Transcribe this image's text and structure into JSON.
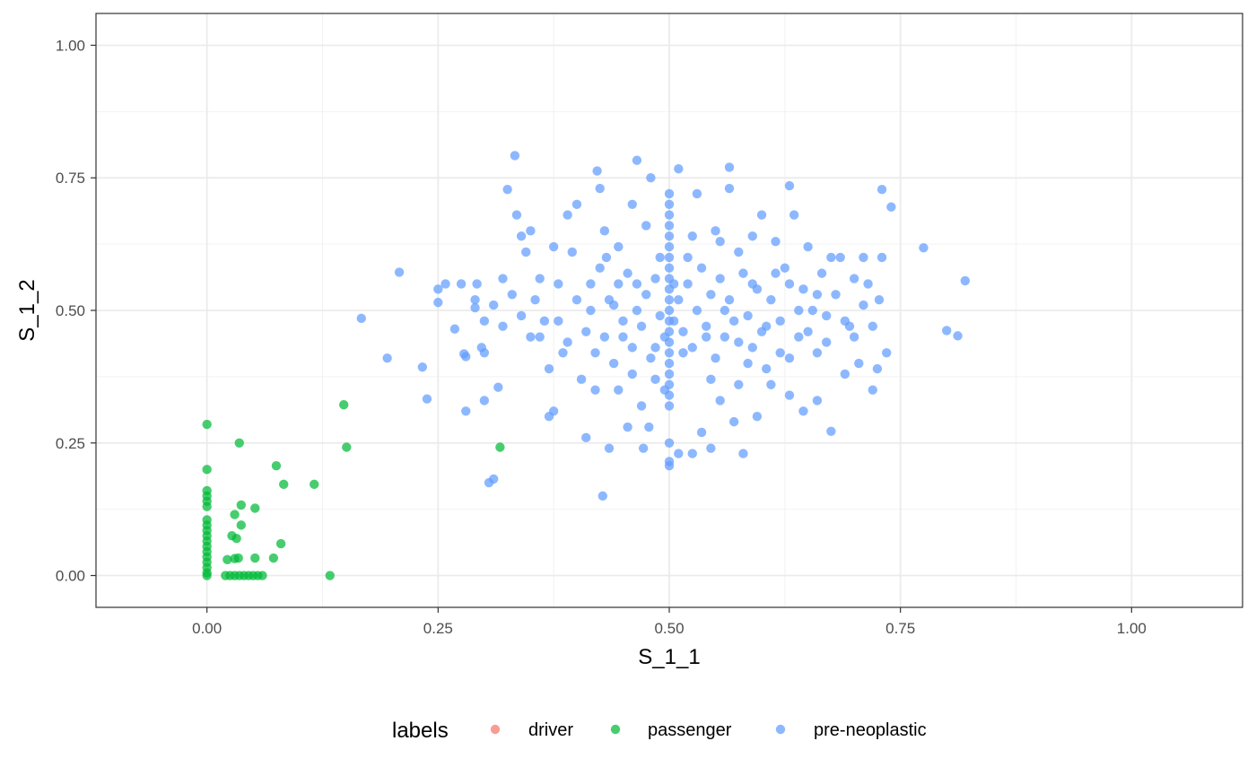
{
  "chart_data": {
    "type": "scatter",
    "xlabel": "S_1_1",
    "ylabel": "S_1_2",
    "xlim": [
      -0.12,
      1.12
    ],
    "ylim": [
      -0.06,
      1.06
    ],
    "x_ticks": [
      0,
      0.25,
      0.5,
      0.75,
      1
    ],
    "y_ticks": [
      0,
      0.25,
      0.5,
      0.75,
      1
    ],
    "x_tick_labels": [
      "0.00",
      "0.25",
      "0.50",
      "0.75",
      "1.00"
    ],
    "y_tick_labels": [
      "0.00",
      "0.25",
      "0.50",
      "0.75",
      "1.00"
    ],
    "grid": true,
    "legend_position": "bottom",
    "legend": {
      "title": "labels",
      "entries": [
        {
          "label": "driver",
          "color": "#F8766D"
        },
        {
          "label": "passenger",
          "color": "#00BA38"
        },
        {
          "label": "pre-neoplastic",
          "color": "#619CFF"
        }
      ]
    },
    "series": [
      {
        "name": "driver",
        "color": "#F8766D",
        "points": []
      },
      {
        "name": "passenger",
        "color": "#00BA38",
        "points": [
          [
            0,
            0.285
          ],
          [
            0,
            0.2
          ],
          [
            0,
            0.16
          ],
          [
            0,
            0.15
          ],
          [
            0,
            0.14
          ],
          [
            0,
            0.13
          ],
          [
            0,
            0.105
          ],
          [
            0,
            0.095
          ],
          [
            0,
            0.085
          ],
          [
            0,
            0.075
          ],
          [
            0,
            0.065
          ],
          [
            0,
            0.055
          ],
          [
            0,
            0.045
          ],
          [
            0,
            0.035
          ],
          [
            0,
            0.025
          ],
          [
            0,
            0.015
          ],
          [
            0,
            0.005
          ],
          [
            0,
            0
          ],
          [
            0.02,
            0
          ],
          [
            0.025,
            0
          ],
          [
            0.03,
            0
          ],
          [
            0.035,
            0
          ],
          [
            0.04,
            0
          ],
          [
            0.045,
            0
          ],
          [
            0.05,
            0
          ],
          [
            0.055,
            0
          ],
          [
            0.06,
            0
          ],
          [
            0.022,
            0.03
          ],
          [
            0.027,
            0.075
          ],
          [
            0.03,
            0.115
          ],
          [
            0.032,
            0.07
          ],
          [
            0.03,
            0.032
          ],
          [
            0.034,
            0.033
          ],
          [
            0.037,
            0.095
          ],
          [
            0.037,
            0.133
          ],
          [
            0.035,
            0.25
          ],
          [
            0.052,
            0.127
          ],
          [
            0.052,
            0.033
          ],
          [
            0.072,
            0.033
          ],
          [
            0.075,
            0.207
          ],
          [
            0.08,
            0.06
          ],
          [
            0.083,
            0.172
          ],
          [
            0.116,
            0.172
          ],
          [
            0.133,
            0
          ],
          [
            0.148,
            0.322
          ],
          [
            0.151,
            0.242
          ],
          [
            0.317,
            0.242
          ]
        ]
      },
      {
        "name": "pre-neoplastic",
        "color": "#619CFF",
        "points": [
          [
            0.333,
            0.792
          ],
          [
            0.422,
            0.763
          ],
          [
            0.465,
            0.783
          ],
          [
            0.51,
            0.767
          ],
          [
            0.565,
            0.77
          ],
          [
            0.63,
            0.735
          ],
          [
            0.73,
            0.728
          ],
          [
            0.74,
            0.695
          ],
          [
            0.775,
            0.618
          ],
          [
            0.82,
            0.556
          ],
          [
            0.8,
            0.462
          ],
          [
            0.812,
            0.452
          ],
          [
            0.208,
            0.572
          ],
          [
            0.167,
            0.485
          ],
          [
            0.195,
            0.41
          ],
          [
            0.233,
            0.393
          ],
          [
            0.238,
            0.333
          ],
          [
            0.25,
            0.54
          ],
          [
            0.25,
            0.515
          ],
          [
            0.258,
            0.55
          ],
          [
            0.268,
            0.465
          ],
          [
            0.275,
            0.55
          ],
          [
            0.278,
            0.418
          ],
          [
            0.28,
            0.413
          ],
          [
            0.28,
            0.31
          ],
          [
            0.29,
            0.505
          ],
          [
            0.292,
            0.55
          ],
          [
            0.297,
            0.43
          ],
          [
            0.3,
            0.42
          ],
          [
            0.3,
            0.33
          ],
          [
            0.305,
            0.175
          ],
          [
            0.31,
            0.182
          ],
          [
            0.315,
            0.355
          ],
          [
            0.32,
            0.56
          ],
          [
            0.325,
            0.728
          ],
          [
            0.335,
            0.68
          ],
          [
            0.34,
            0.64
          ],
          [
            0.345,
            0.61
          ],
          [
            0.35,
            0.65
          ],
          [
            0.355,
            0.52
          ],
          [
            0.36,
            0.45
          ],
          [
            0.365,
            0.48
          ],
          [
            0.37,
            0.3
          ],
          [
            0.375,
            0.31
          ],
          [
            0.38,
            0.55
          ],
          [
            0.385,
            0.42
          ],
          [
            0.39,
            0.68
          ],
          [
            0.395,
            0.61
          ],
          [
            0.4,
            0.7
          ],
          [
            0.405,
            0.37
          ],
          [
            0.41,
            0.26
          ],
          [
            0.415,
            0.55
          ],
          [
            0.42,
            0.35
          ],
          [
            0.425,
            0.73
          ],
          [
            0.428,
            0.15
          ],
          [
            0.432,
            0.6
          ],
          [
            0.435,
            0.24
          ],
          [
            0.44,
            0.51
          ],
          [
            0.445,
            0.62
          ],
          [
            0.45,
            0.45
          ],
          [
            0.455,
            0.28
          ],
          [
            0.46,
            0.7
          ],
          [
            0.465,
            0.55
          ],
          [
            0.47,
            0.32
          ],
          [
            0.472,
            0.24
          ],
          [
            0.478,
            0.28
          ],
          [
            0.48,
            0.75
          ],
          [
            0.485,
            0.43
          ],
          [
            0.49,
            0.6
          ],
          [
            0.495,
            0.35
          ],
          [
            0.5,
            0.72
          ],
          [
            0.5,
            0.7
          ],
          [
            0.5,
            0.68
          ],
          [
            0.5,
            0.66
          ],
          [
            0.5,
            0.64
          ],
          [
            0.5,
            0.62
          ],
          [
            0.5,
            0.6
          ],
          [
            0.5,
            0.58
          ],
          [
            0.5,
            0.56
          ],
          [
            0.5,
            0.54
          ],
          [
            0.5,
            0.52
          ],
          [
            0.5,
            0.5
          ],
          [
            0.5,
            0.48
          ],
          [
            0.5,
            0.46
          ],
          [
            0.5,
            0.44
          ],
          [
            0.5,
            0.42
          ],
          [
            0.5,
            0.4
          ],
          [
            0.5,
            0.38
          ],
          [
            0.5,
            0.36
          ],
          [
            0.5,
            0.34
          ],
          [
            0.5,
            0.32
          ],
          [
            0.5,
            0.25
          ],
          [
            0.5,
            0.215
          ],
          [
            0.5,
            0.207
          ],
          [
            0.505,
            0.55
          ],
          [
            0.51,
            0.23
          ],
          [
            0.515,
            0.42
          ],
          [
            0.52,
            0.6
          ],
          [
            0.525,
            0.23
          ],
          [
            0.53,
            0.72
          ],
          [
            0.535,
            0.27
          ],
          [
            0.54,
            0.45
          ],
          [
            0.545,
            0.24
          ],
          [
            0.55,
            0.65
          ],
          [
            0.555,
            0.33
          ],
          [
            0.56,
            0.5
          ],
          [
            0.565,
            0.73
          ],
          [
            0.57,
            0.29
          ],
          [
            0.575,
            0.61
          ],
          [
            0.58,
            0.23
          ],
          [
            0.585,
            0.4
          ],
          [
            0.59,
            0.55
          ],
          [
            0.595,
            0.3
          ],
          [
            0.6,
            0.68
          ],
          [
            0.605,
            0.47
          ],
          [
            0.61,
            0.36
          ],
          [
            0.615,
            0.63
          ],
          [
            0.62,
            0.42
          ],
          [
            0.625,
            0.58
          ],
          [
            0.63,
            0.34
          ],
          [
            0.635,
            0.68
          ],
          [
            0.64,
            0.45
          ],
          [
            0.645,
            0.31
          ],
          [
            0.65,
            0.62
          ],
          [
            0.655,
            0.5
          ],
          [
            0.66,
            0.33
          ],
          [
            0.665,
            0.57
          ],
          [
            0.67,
            0.44
          ],
          [
            0.675,
            0.272
          ],
          [
            0.68,
            0.53
          ],
          [
            0.685,
            0.6
          ],
          [
            0.69,
            0.38
          ],
          [
            0.695,
            0.47
          ],
          [
            0.7,
            0.56
          ],
          [
            0.705,
            0.4
          ],
          [
            0.71,
            0.6
          ],
          [
            0.715,
            0.55
          ],
          [
            0.72,
            0.35
          ],
          [
            0.725,
            0.39
          ],
          [
            0.73,
            0.6
          ],
          [
            0.735,
            0.42
          ],
          [
            0.727,
            0.52
          ],
          [
            0.38,
            0.48
          ],
          [
            0.39,
            0.44
          ],
          [
            0.4,
            0.52
          ],
          [
            0.41,
            0.46
          ],
          [
            0.415,
            0.5
          ],
          [
            0.42,
            0.42
          ],
          [
            0.425,
            0.58
          ],
          [
            0.43,
            0.45
          ],
          [
            0.435,
            0.52
          ],
          [
            0.44,
            0.4
          ],
          [
            0.445,
            0.55
          ],
          [
            0.45,
            0.48
          ],
          [
            0.455,
            0.57
          ],
          [
            0.46,
            0.43
          ],
          [
            0.465,
            0.5
          ],
          [
            0.47,
            0.47
          ],
          [
            0.475,
            0.53
          ],
          [
            0.48,
            0.41
          ],
          [
            0.485,
            0.56
          ],
          [
            0.49,
            0.49
          ],
          [
            0.495,
            0.45
          ],
          [
            0.505,
            0.48
          ],
          [
            0.51,
            0.52
          ],
          [
            0.515,
            0.46
          ],
          [
            0.52,
            0.55
          ],
          [
            0.525,
            0.43
          ],
          [
            0.53,
            0.5
          ],
          [
            0.535,
            0.58
          ],
          [
            0.54,
            0.47
          ],
          [
            0.545,
            0.53
          ],
          [
            0.55,
            0.41
          ],
          [
            0.555,
            0.56
          ],
          [
            0.56,
            0.45
          ],
          [
            0.565,
            0.52
          ],
          [
            0.57,
            0.48
          ],
          [
            0.575,
            0.44
          ],
          [
            0.58,
            0.57
          ],
          [
            0.585,
            0.49
          ],
          [
            0.59,
            0.43
          ],
          [
            0.595,
            0.54
          ],
          [
            0.6,
            0.46
          ],
          [
            0.61,
            0.52
          ],
          [
            0.62,
            0.48
          ],
          [
            0.63,
            0.55
          ],
          [
            0.64,
            0.5
          ],
          [
            0.65,
            0.46
          ],
          [
            0.66,
            0.53
          ],
          [
            0.67,
            0.49
          ],
          [
            0.35,
            0.45
          ],
          [
            0.36,
            0.56
          ],
          [
            0.37,
            0.39
          ],
          [
            0.375,
            0.62
          ],
          [
            0.43,
            0.65
          ],
          [
            0.445,
            0.35
          ],
          [
            0.46,
            0.38
          ],
          [
            0.475,
            0.66
          ],
          [
            0.485,
            0.37
          ],
          [
            0.525,
            0.64
          ],
          [
            0.545,
            0.37
          ],
          [
            0.555,
            0.63
          ],
          [
            0.575,
            0.36
          ],
          [
            0.59,
            0.64
          ],
          [
            0.605,
            0.39
          ],
          [
            0.615,
            0.57
          ],
          [
            0.63,
            0.41
          ],
          [
            0.645,
            0.54
          ],
          [
            0.66,
            0.42
          ],
          [
            0.675,
            0.6
          ],
          [
            0.69,
            0.48
          ],
          [
            0.7,
            0.45
          ],
          [
            0.71,
            0.51
          ],
          [
            0.72,
            0.47
          ],
          [
            0.32,
            0.47
          ],
          [
            0.33,
            0.53
          ],
          [
            0.34,
            0.49
          ],
          [
            0.31,
            0.51
          ],
          [
            0.3,
            0.48
          ],
          [
            0.29,
            0.52
          ]
        ]
      }
    ]
  }
}
